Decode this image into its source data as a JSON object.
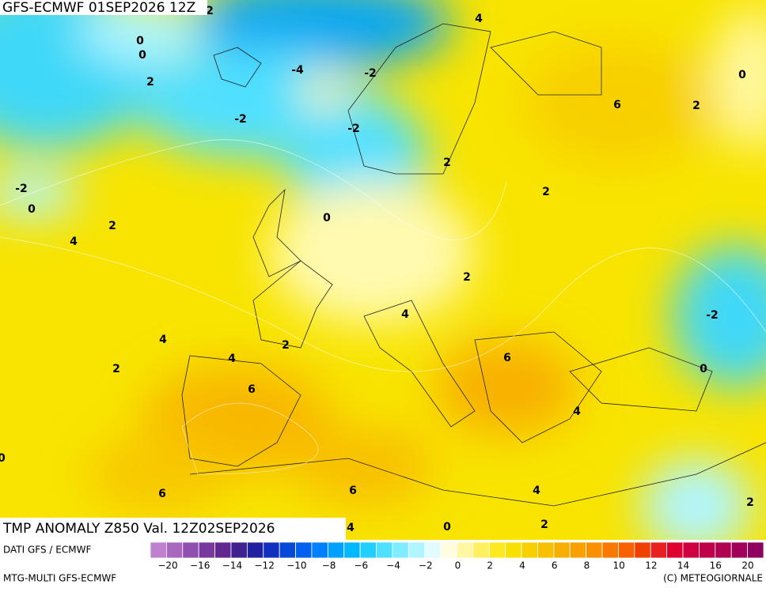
{
  "header": {
    "title": "GFS-ECMWF 01SEP2026 12Z"
  },
  "map": {
    "labels": [
      "2",
      "4",
      "0",
      "0",
      "-4",
      "-2",
      "0",
      "2",
      "6",
      "2",
      "-2",
      "-2",
      "2",
      "2",
      "-2",
      "0",
      "0",
      "2",
      "4",
      "2",
      "-2",
      "4",
      "4",
      "2",
      "4",
      "6",
      "2",
      "0",
      "6",
      "4",
      "6",
      "6",
      "4",
      "2",
      "2",
      "0",
      "4",
      "0"
    ]
  },
  "footer": {
    "title": "TMP ANOMALY Z850 Val. 12Z02SEP2026",
    "source": "DATI GFS / ECMWF",
    "model": "MTG-MULTI GFS-ECMWF",
    "credit": "(C) METEOGIORNALE"
  },
  "colorbar": {
    "colors": [
      "#c080d0",
      "#a868c0",
      "#9050b0",
      "#7838a0",
      "#602890",
      "#402090",
      "#2020a0",
      "#1030c0",
      "#0848d8",
      "#0060f0",
      "#0080ff",
      "#00a0ff",
      "#00b8ff",
      "#20d0ff",
      "#50e0ff",
      "#80ecff",
      "#b0f6ff",
      "#e0fcff",
      "#fffce0",
      "#fff8a0",
      "#fff060",
      "#ffea20",
      "#f8e000",
      "#f8d000",
      "#f8c000",
      "#f8b000",
      "#f8a000",
      "#f89000",
      "#f87800",
      "#f86000",
      "#f04000",
      "#e82020",
      "#e00030",
      "#d00040",
      "#c00048",
      "#b00050",
      "#a00058",
      "#900060"
    ],
    "labels": [
      "−20",
      "−16",
      "−14",
      "−12",
      "−10",
      "−8",
      "−6",
      "−4",
      "−2",
      "0",
      "2",
      "4",
      "6",
      "8",
      "10",
      "12",
      "14",
      "16",
      "20"
    ]
  }
}
